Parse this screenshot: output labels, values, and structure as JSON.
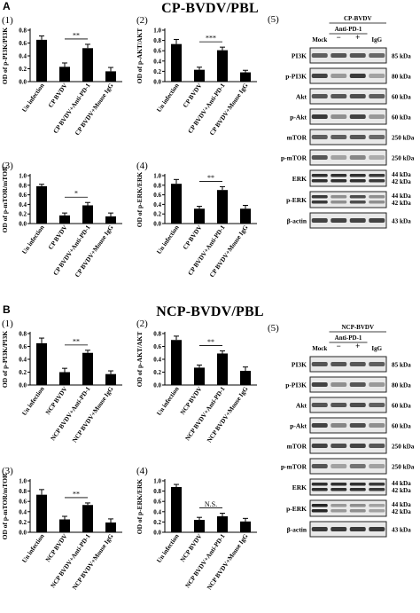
{
  "panels": [
    {
      "letter": "A",
      "title": "CP-BVDV/PBL"
    },
    {
      "letter": "B",
      "title": "NCP-BVDV/PBL"
    }
  ],
  "chart_data": [
    {
      "id": "A1",
      "type": "bar",
      "panel_number": "(1)",
      "ylabel": "OD of p-PI3K/PI3K",
      "ylim": [
        0,
        0.8
      ],
      "yticks": [
        "0.0",
        "0.2",
        "0.4",
        "0.6",
        "0.8"
      ],
      "categories": [
        "Un infection",
        "CP BVDV",
        "CP BVDV+Anti-PD-1",
        "CP BVDV+Mouse IgG"
      ],
      "values": [
        0.65,
        0.23,
        0.52,
        0.16
      ],
      "errors": [
        0.06,
        0.06,
        0.06,
        0.06
      ],
      "significance": [
        {
          "from": 1,
          "to": 2,
          "label": "**"
        }
      ]
    },
    {
      "id": "A2",
      "type": "bar",
      "panel_number": "(2)",
      "ylabel": "OD of p-AKT/AKT",
      "ylim": [
        0,
        1.0
      ],
      "yticks": [
        "0.0",
        "0.2",
        "0.4",
        "0.6",
        "0.8",
        "1.0"
      ],
      "categories": [
        "Un infection",
        "CP BVDV",
        "CP BVDV+Anti-PD-1",
        "CP BVDV+Mouse IgG"
      ],
      "values": [
        0.73,
        0.23,
        0.61,
        0.18
      ],
      "errors": [
        0.09,
        0.05,
        0.06,
        0.04
      ],
      "significance": [
        {
          "from": 1,
          "to": 2,
          "label": "***"
        }
      ]
    },
    {
      "id": "A3",
      "type": "bar",
      "panel_number": "(3)",
      "ylabel": "OD of p-mTOR/mTOR",
      "ylim": [
        0,
        1.0
      ],
      "yticks": [
        "0.0",
        "0.2",
        "0.4",
        "0.6",
        "0.8",
        "1.0"
      ],
      "categories": [
        "Un infection",
        "CP BVDV",
        "CP BVDV+Anti-PD-1",
        "CP BVDV+Mouse IgG"
      ],
      "values": [
        0.78,
        0.17,
        0.38,
        0.15
      ],
      "errors": [
        0.04,
        0.05,
        0.06,
        0.07
      ],
      "significance": [
        {
          "from": 1,
          "to": 2,
          "label": "*"
        }
      ]
    },
    {
      "id": "A4",
      "type": "bar",
      "panel_number": "(4)",
      "ylabel": "OD of p-ERK/ERK",
      "ylim": [
        0,
        1.0
      ],
      "yticks": [
        "0.0",
        "0.2",
        "0.4",
        "0.6",
        "0.8",
        "1.0"
      ],
      "categories": [
        "Un infection",
        "CP BVDV",
        "CP BVDV+Anti-PD-1",
        "CP BVDV+Mouse IgG"
      ],
      "values": [
        0.83,
        0.31,
        0.7,
        0.31
      ],
      "errors": [
        0.09,
        0.05,
        0.07,
        0.07
      ],
      "significance": [
        {
          "from": 1,
          "to": 2,
          "label": "**"
        }
      ]
    },
    {
      "id": "B1",
      "type": "bar",
      "panel_number": "(1)",
      "ylabel": "OD of p-PI3K/PI3K",
      "ylim": [
        0,
        0.8
      ],
      "yticks": [
        "0.0",
        "0.2",
        "0.4",
        "0.6",
        "0.8"
      ],
      "categories": [
        "Un infection",
        "NCP BVDV",
        "NCP BVDV+Anti-PD-1",
        "NCP BVDV+Mouse IgG"
      ],
      "values": [
        0.65,
        0.2,
        0.5,
        0.17
      ],
      "errors": [
        0.08,
        0.06,
        0.04,
        0.05
      ],
      "significance": [
        {
          "from": 1,
          "to": 2,
          "label": "**"
        }
      ]
    },
    {
      "id": "B2",
      "type": "bar",
      "panel_number": "(2)",
      "ylabel": "OD of p-AKT/AKT",
      "ylim": [
        0,
        0.8
      ],
      "yticks": [
        "0.0",
        "0.2",
        "0.4",
        "0.6",
        "0.8"
      ],
      "categories": [
        "Un infection",
        "NCP BVDV",
        "NCP BVDV+Anti-PD-1",
        "NCP BVDV+Mouse IgG"
      ],
      "values": [
        0.7,
        0.27,
        0.49,
        0.22
      ],
      "errors": [
        0.06,
        0.04,
        0.04,
        0.06
      ],
      "significance": [
        {
          "from": 1,
          "to": 2,
          "label": "**"
        }
      ]
    },
    {
      "id": "B3",
      "type": "bar",
      "panel_number": "(3)",
      "ylabel": "OD of p-mTOR/mTOR",
      "ylim": [
        0,
        1.0
      ],
      "yticks": [
        "0.0",
        "0.2",
        "0.4",
        "0.6",
        "0.8",
        "1.0"
      ],
      "categories": [
        "Un infection",
        "NCP BVDV",
        "NCP BVDV+Anti-PD-1",
        "NCP BVDV+Mouse IgG"
      ],
      "values": [
        0.73,
        0.25,
        0.53,
        0.19
      ],
      "errors": [
        0.1,
        0.06,
        0.04,
        0.07
      ],
      "significance": [
        {
          "from": 1,
          "to": 2,
          "label": "**"
        }
      ]
    },
    {
      "id": "B4",
      "type": "bar",
      "panel_number": "(4)",
      "ylabel": "OD of p-ERK/ERK",
      "ylim": [
        0,
        1.0
      ],
      "yticks": [
        "0.0",
        "0.2",
        "0.4",
        "0.6",
        "0.8",
        "1.0"
      ],
      "categories": [
        "Un infection",
        "NCP BVDV",
        "NCP BVDV+Anti-PD-1",
        "NCP BVDV+Mouse IgG"
      ],
      "values": [
        0.88,
        0.24,
        0.31,
        0.21
      ],
      "errors": [
        0.05,
        0.05,
        0.06,
        0.06
      ],
      "significance": [
        {
          "from": 1,
          "to": 2,
          "label": "N.S."
        }
      ]
    }
  ],
  "blots": [
    {
      "id": "A5",
      "panel_number": "(5)",
      "virus_label": "CP-BVDV",
      "antibody_label": "Anti-PD-1",
      "lane_labels": [
        "Mock",
        "−",
        "+",
        "IgG"
      ],
      "rows": [
        {
          "name": "PI3K",
          "kda": [
            "85 kDa"
          ],
          "intensity": [
            0.55,
            0.6,
            0.6,
            0.5
          ]
        },
        {
          "name": "p-PI3K",
          "kda": [
            "80 kDa"
          ],
          "intensity": [
            0.7,
            0.25,
            0.75,
            0.2
          ]
        },
        {
          "name": "Akt",
          "kda": [
            "60 kDa"
          ],
          "intensity": [
            0.6,
            0.6,
            0.65,
            0.55
          ]
        },
        {
          "name": "p-Akt",
          "kda": [
            "60 kDa"
          ],
          "intensity": [
            0.75,
            0.3,
            0.7,
            0.25
          ]
        },
        {
          "name": "mTOR",
          "kda": [
            "250 kDa"
          ],
          "intensity": [
            0.55,
            0.55,
            0.6,
            0.5
          ]
        },
        {
          "name": "p-mTOR",
          "kda": [
            "250 kDa"
          ],
          "intensity": [
            0.6,
            0.2,
            0.35,
            0.15
          ]
        },
        {
          "name": "ERK",
          "kda": [
            "44 kDa",
            "42 kDa"
          ],
          "intensity": [
            0.8,
            0.8,
            0.8,
            0.75
          ]
        },
        {
          "name": "p-ERK",
          "kda": [
            "44 kDa",
            "42 kDa"
          ],
          "intensity": [
            0.75,
            0.3,
            0.65,
            0.3
          ]
        },
        {
          "name": "β-actin",
          "kda": [
            "43 kDa"
          ],
          "intensity": [
            0.7,
            0.7,
            0.7,
            0.7
          ]
        }
      ]
    },
    {
      "id": "B5",
      "panel_number": "(5)",
      "virus_label": "NCP-BVDV",
      "antibody_label": "Anti-PD-1",
      "lane_labels": [
        "Mock",
        "−",
        "+",
        "IgG"
      ],
      "rows": [
        {
          "name": "PI3K",
          "kda": [
            "85 kDa"
          ],
          "intensity": [
            0.6,
            0.6,
            0.6,
            0.55
          ]
        },
        {
          "name": "p-PI3K",
          "kda": [
            "80 kDa"
          ],
          "intensity": [
            0.7,
            0.3,
            0.6,
            0.25
          ]
        },
        {
          "name": "Akt",
          "kda": [
            "60 kDa"
          ],
          "intensity": [
            0.6,
            0.6,
            0.65,
            0.55
          ]
        },
        {
          "name": "p-Akt",
          "kda": [
            "60 kDa"
          ],
          "intensity": [
            0.7,
            0.35,
            0.65,
            0.3
          ]
        },
        {
          "name": "mTOR",
          "kda": [
            "250 kDa"
          ],
          "intensity": [
            0.7,
            0.65,
            0.7,
            0.6
          ]
        },
        {
          "name": "p-mTOR",
          "kda": [
            "250 kDa"
          ],
          "intensity": [
            0.6,
            0.2,
            0.45,
            0.2
          ]
        },
        {
          "name": "ERK",
          "kda": [
            "44 kDa",
            "42 kDa"
          ],
          "intensity": [
            0.8,
            0.8,
            0.8,
            0.75
          ]
        },
        {
          "name": "p-ERK",
          "kda": [
            "44 kDa",
            "42 kDa"
          ],
          "intensity": [
            0.85,
            0.25,
            0.3,
            0.2
          ]
        },
        {
          "name": "β-actin",
          "kda": [
            "43 kDa"
          ],
          "intensity": [
            0.75,
            0.75,
            0.75,
            0.75
          ]
        }
      ]
    }
  ]
}
